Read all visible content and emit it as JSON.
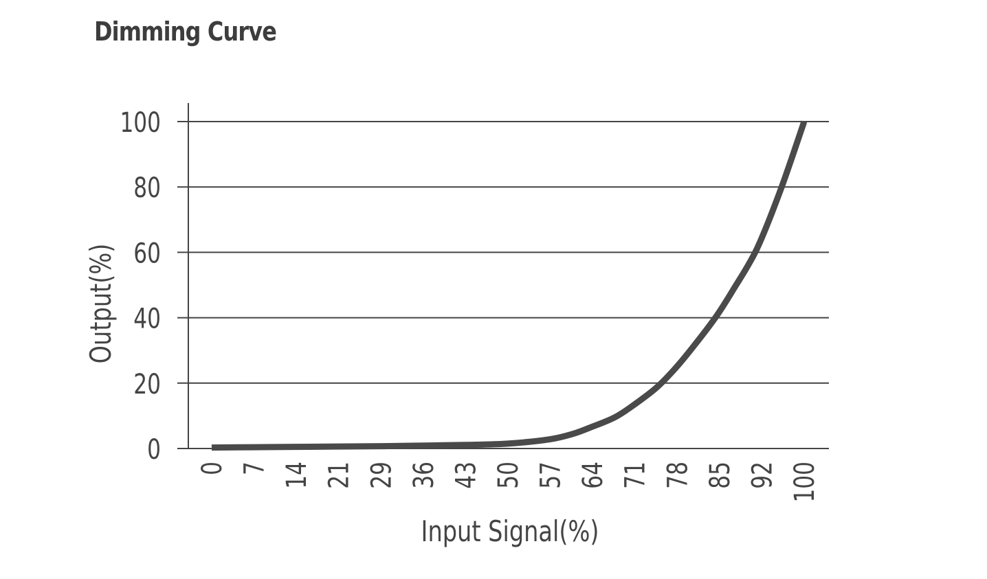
{
  "chart_data": {
    "type": "line",
    "title": "Dimming Curve",
    "xlabel": "Input Signal(%)",
    "ylabel": "Output(%)",
    "x_ticks": [
      "0",
      "7",
      "14",
      "21",
      "29",
      "36",
      "43",
      "50",
      "57",
      "64",
      "71",
      "78",
      "85",
      "92",
      "100"
    ],
    "y_ticks": [
      "0",
      "20",
      "40",
      "60",
      "80",
      "100"
    ],
    "xlim": [
      0,
      100
    ],
    "ylim": [
      0,
      100
    ],
    "grid": "horizontal",
    "colors": {
      "curve": "#4a4a4a",
      "grid": "#444444",
      "text": "#444444"
    },
    "series": [
      {
        "x": [
          0,
          7,
          14,
          21,
          29,
          36,
          43,
          50,
          57,
          61,
          64,
          68,
          71,
          75,
          78,
          81,
          85,
          88,
          92,
          96,
          100
        ],
        "y": [
          0.3,
          0.4,
          0.5,
          0.6,
          0.7,
          0.9,
          1.1,
          1.5,
          2.8,
          4.5,
          6.5,
          9.5,
          13,
          18.5,
          24,
          30.5,
          40,
          48.5,
          61,
          79,
          100
        ]
      }
    ]
  }
}
